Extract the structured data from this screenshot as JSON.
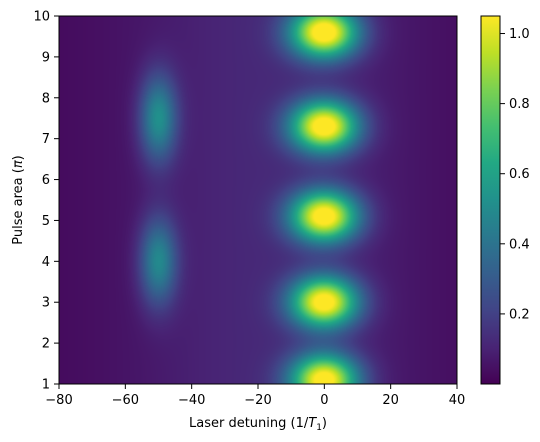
{
  "chart_data": {
    "type": "heatmap",
    "title": "",
    "xlabel": {
      "prefix": "Laser detuning (1/",
      "var": "T",
      "sub": "1",
      "suffix": ")"
    },
    "ylabel": {
      "prefix": "Pulse area (",
      "var": "π",
      "suffix": ")"
    },
    "xlim": [
      -80,
      40
    ],
    "ylim": [
      1,
      10
    ],
    "xticks": [
      -80,
      -60,
      -40,
      -20,
      0,
      20,
      40
    ],
    "xtick_labels": [
      "−80",
      "−60",
      "−40",
      "−20",
      "0",
      "20",
      "40"
    ],
    "yticks": [
      1,
      2,
      3,
      4,
      5,
      6,
      7,
      8,
      9,
      10
    ],
    "ytick_labels": [
      "1",
      "2",
      "3",
      "4",
      "5",
      "6",
      "7",
      "8",
      "9",
      "10"
    ],
    "colormap": "viridis",
    "clim": [
      0.0,
      1.05
    ],
    "colorbar_ticks": [
      0.2,
      0.4,
      0.6,
      0.8,
      1.0
    ],
    "colorbar_tick_labels": [
      "0.2",
      "0.4",
      "0.6",
      "0.8",
      "1.0"
    ],
    "background_level": 0.12,
    "peaks": [
      {
        "x": 0,
        "y": 1.1,
        "value": 1.02
      },
      {
        "x": 0,
        "y": 3.0,
        "value": 1.02
      },
      {
        "x": 0,
        "y": 5.1,
        "value": 1.03
      },
      {
        "x": 0,
        "y": 7.3,
        "value": 1.04
      },
      {
        "x": 0,
        "y": 9.6,
        "value": 1.05
      },
      {
        "x": -50,
        "y": 4.0,
        "value": 0.42
      },
      {
        "x": -50,
        "y": 7.5,
        "value": 0.45
      }
    ]
  }
}
